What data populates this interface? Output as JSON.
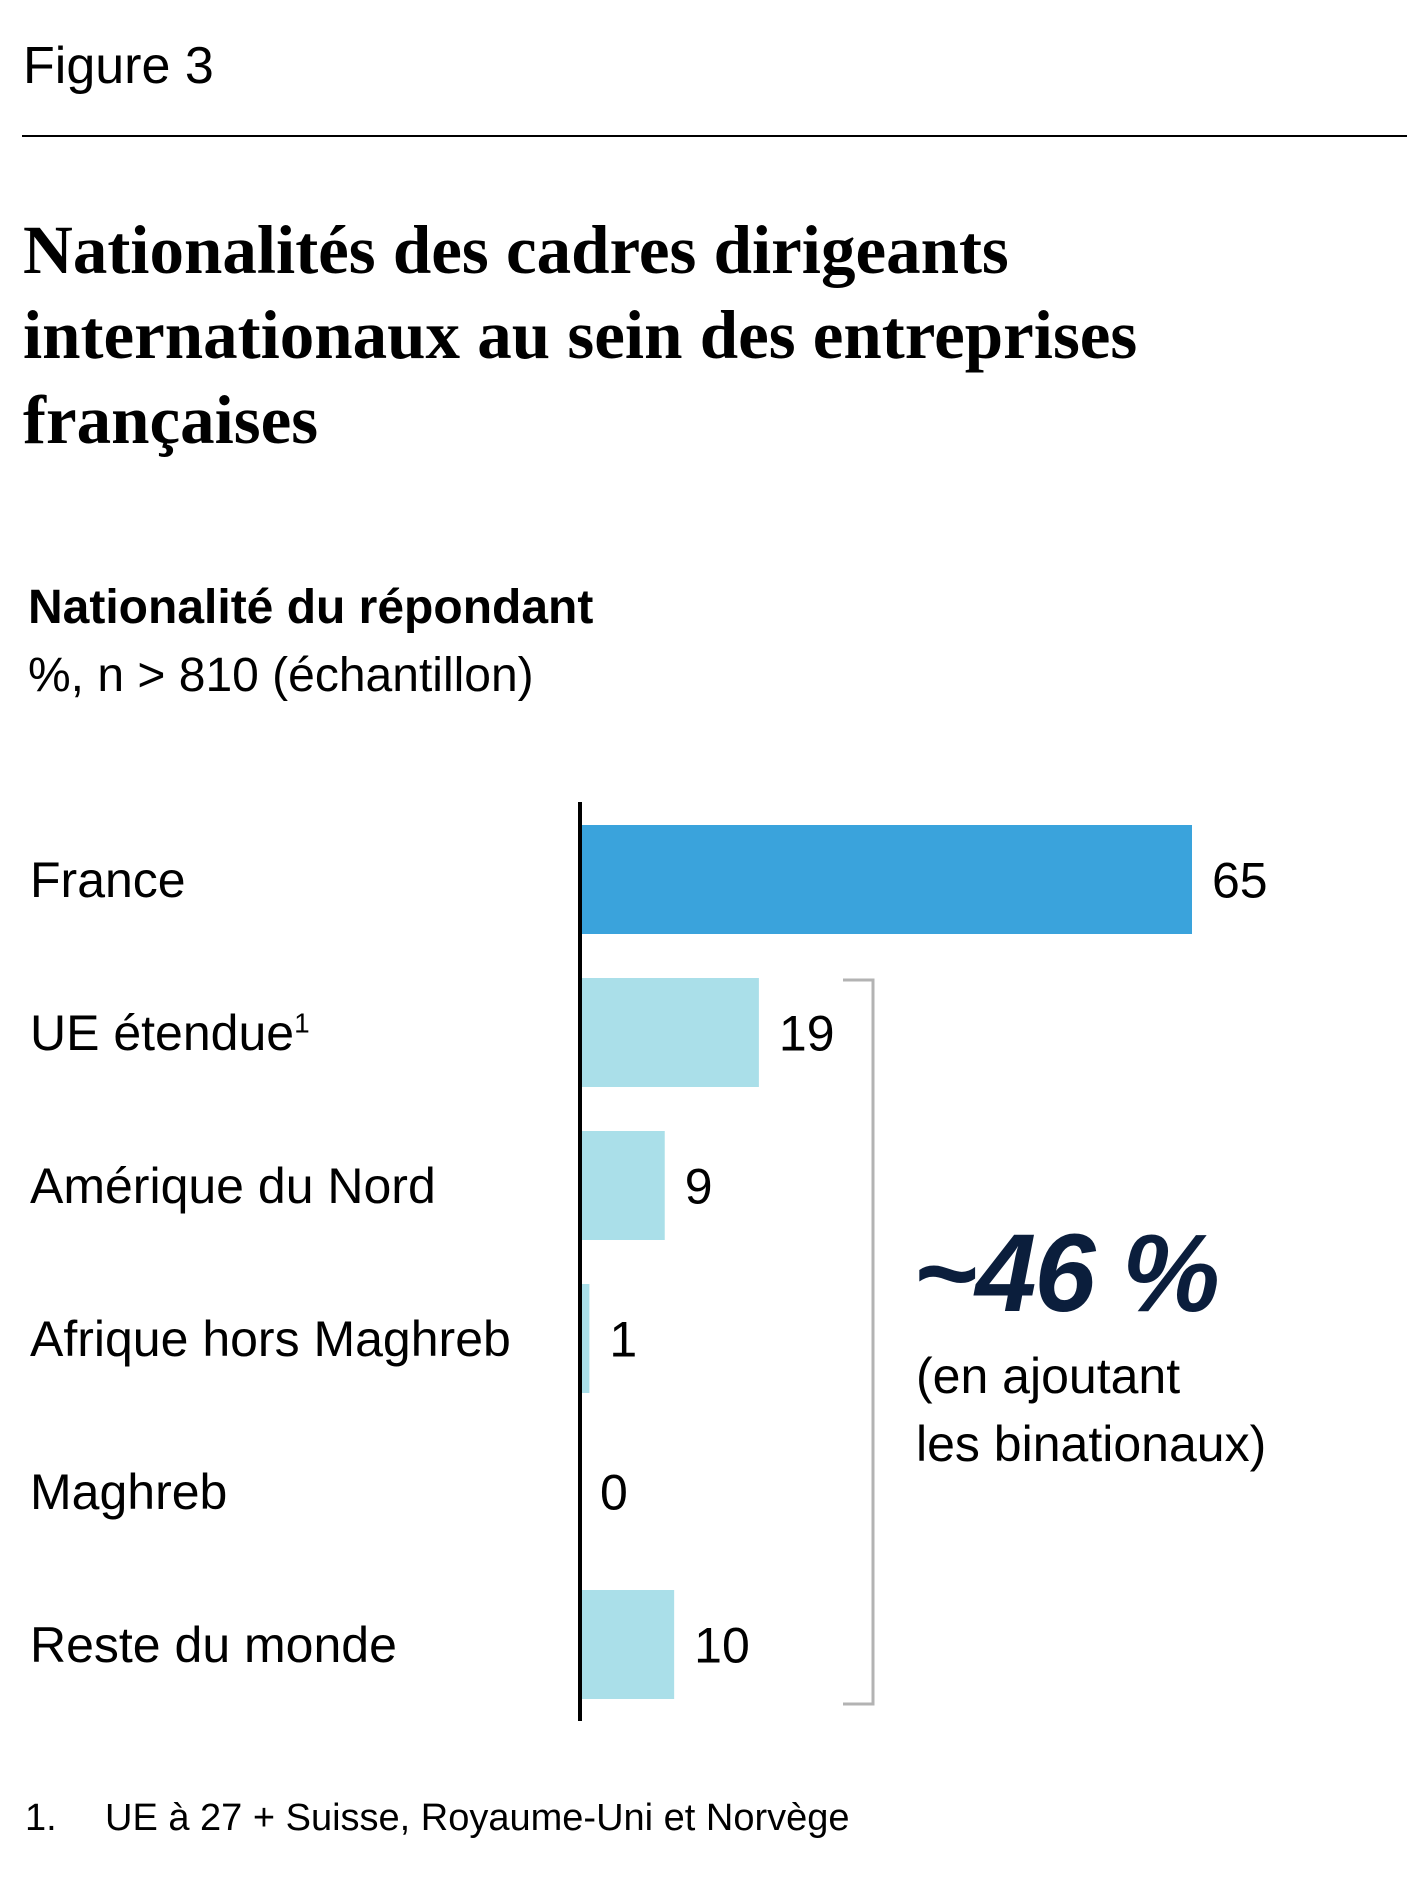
{
  "figure_label": "Figure 3",
  "chart_data": {
    "type": "bar",
    "orientation": "horizontal",
    "title": "Nationalités des cadres dirigeants internationaux au sein des entreprises françaises",
    "subtitle": "Nationalité du répondant",
    "unit": "%, n > 810 (échantillon)",
    "categories": [
      "France",
      "UE étendue",
      "Amérique du Nord",
      "Afrique hors Maghreb",
      "Maghreb",
      "Reste du monde"
    ],
    "category_footnote_marks": [
      "",
      "1",
      "",
      "",
      "",
      ""
    ],
    "values": [
      65,
      19,
      9,
      1,
      0,
      10
    ],
    "value_labels": [
      "65",
      "19",
      "9",
      "1",
      "0",
      "10"
    ],
    "colors": [
      "#3aa3dc",
      "#aadfe9",
      "#aadfe9",
      "#aadfe9",
      "#aadfe9",
      "#aadfe9"
    ],
    "xlim": [
      0,
      65
    ],
    "grid": false,
    "annotation": {
      "value": "~46 %",
      "note_line1": "(en ajoutant",
      "note_line2": "les binationaux)",
      "bracket_covers": [
        "UE étendue",
        "Amérique du Nord",
        "Afrique hors Maghreb",
        "Maghreb",
        "Reste du monde"
      ]
    }
  },
  "footnote": {
    "number": "1.",
    "text": "UE à 27 + Suisse, Royaume-Uni et Norvège"
  }
}
